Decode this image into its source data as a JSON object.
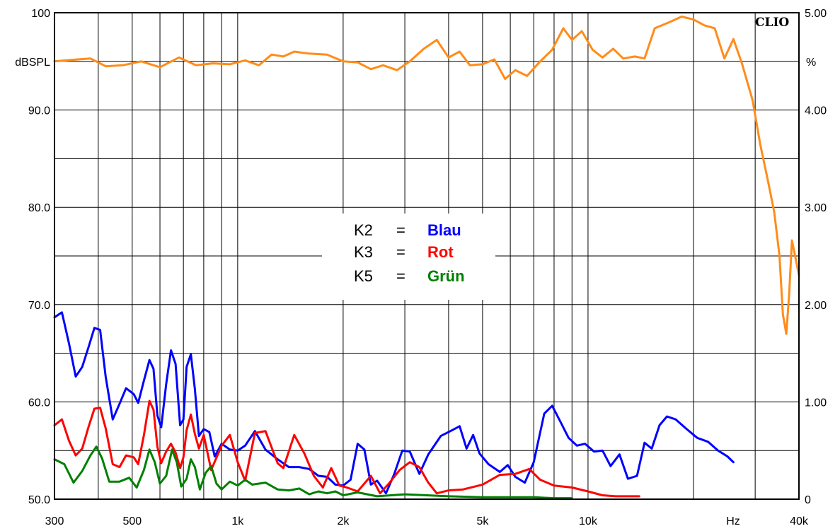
{
  "brand": "CLIO",
  "chart_data": {
    "type": "line",
    "x_scale": "log",
    "xlim": [
      300,
      40000
    ],
    "ylim_left": [
      50,
      100
    ],
    "ylim_right": [
      0,
      5
    ],
    "grid": true,
    "left_unit": "dBSPL",
    "right_unit": "%",
    "x_unit": "Hz",
    "x_ticks": [
      {
        "value": 300,
        "label": "300"
      },
      {
        "value": 500,
        "label": "500"
      },
      {
        "value": 1000,
        "label": "1k"
      },
      {
        "value": 2000,
        "label": "2k"
      },
      {
        "value": 5000,
        "label": "5k"
      },
      {
        "value": 10000,
        "label": "10k"
      },
      {
        "value": 40000,
        "label": "40k"
      }
    ],
    "y_ticks_left": [
      {
        "value": 100,
        "label": "100"
      },
      {
        "value": 90,
        "label": "90.0"
      },
      {
        "value": 80,
        "label": "80.0"
      },
      {
        "value": 70,
        "label": "70.0"
      },
      {
        "value": 60,
        "label": "60.0"
      },
      {
        "value": 50,
        "label": "50.0"
      }
    ],
    "y_ticks_right": [
      {
        "value": 5,
        "label": "5.00"
      },
      {
        "value": 4,
        "label": "4.00"
      },
      {
        "value": 3,
        "label": "3.00"
      },
      {
        "value": 2,
        "label": "2.00"
      },
      {
        "value": 1,
        "label": "1.00"
      },
      {
        "value": 0,
        "label": "0"
      }
    ],
    "legend": [
      {
        "key": "K2",
        "eq": "=",
        "name": "Blau",
        "color": "#0000ff"
      },
      {
        "key": "K3",
        "eq": "=",
        "name": "Rot",
        "color": "#ff0000"
      },
      {
        "key": "K5",
        "eq": "=",
        "name": "Grün",
        "color": "#008000"
      }
    ],
    "series": [
      {
        "color": "#ff8c1a",
        "axis": "left",
        "points": [
          [
            300,
            95.0
          ],
          [
            350,
            95.2
          ],
          [
            380,
            95.3
          ],
          [
            420,
            94.5
          ],
          [
            470,
            94.6
          ],
          [
            530,
            95.0
          ],
          [
            600,
            94.4
          ],
          [
            680,
            95.4
          ],
          [
            760,
            94.6
          ],
          [
            850,
            94.8
          ],
          [
            950,
            94.7
          ],
          [
            1050,
            95.1
          ],
          [
            1150,
            94.6
          ],
          [
            1250,
            95.7
          ],
          [
            1350,
            95.5
          ],
          [
            1450,
            96.0
          ],
          [
            1600,
            95.8
          ],
          [
            1800,
            95.7
          ],
          [
            2000,
            95.0
          ],
          [
            2200,
            94.9
          ],
          [
            2400,
            94.2
          ],
          [
            2600,
            94.6
          ],
          [
            2850,
            94.1
          ],
          [
            3100,
            95.0
          ],
          [
            3400,
            96.3
          ],
          [
            3700,
            97.2
          ],
          [
            4000,
            95.4
          ],
          [
            4300,
            96.0
          ],
          [
            4600,
            94.6
          ],
          [
            5000,
            94.7
          ],
          [
            5400,
            95.2
          ],
          [
            5800,
            93.2
          ],
          [
            6200,
            94.1
          ],
          [
            6700,
            93.5
          ],
          [
            7300,
            95.0
          ],
          [
            7900,
            96.2
          ],
          [
            8500,
            98.4
          ],
          [
            9000,
            97.2
          ],
          [
            9600,
            98.1
          ],
          [
            10300,
            96.2
          ],
          [
            11000,
            95.4
          ],
          [
            11800,
            96.3
          ],
          [
            12600,
            95.3
          ],
          [
            13600,
            95.5
          ],
          [
            14500,
            95.3
          ],
          [
            15500,
            98.4
          ],
          [
            17000,
            99.0
          ],
          [
            18500,
            99.6
          ],
          [
            20000,
            99.3
          ],
          [
            21500,
            98.7
          ],
          [
            23000,
            98.4
          ],
          [
            24500,
            95.3
          ],
          [
            26000,
            97.3
          ],
          [
            27500,
            94.8
          ],
          [
            29500,
            91.0
          ],
          [
            31000,
            86.5
          ],
          [
            32500,
            83.0
          ],
          [
            34000,
            79.5
          ],
          [
            35200,
            75.0
          ],
          [
            36000,
            69.0
          ],
          [
            36800,
            67.0
          ],
          [
            37500,
            71.0
          ],
          [
            38200,
            76.6
          ],
          [
            39000,
            75.0
          ],
          [
            40000,
            73.0
          ]
        ]
      },
      {
        "color": "#0000ff",
        "axis": "left",
        "points": [
          [
            300,
            68.7
          ],
          [
            315,
            69.2
          ],
          [
            330,
            66.0
          ],
          [
            345,
            62.6
          ],
          [
            360,
            63.6
          ],
          [
            375,
            65.6
          ],
          [
            390,
            67.6
          ],
          [
            405,
            67.4
          ],
          [
            420,
            62.6
          ],
          [
            440,
            58.2
          ],
          [
            460,
            59.8
          ],
          [
            480,
            61.4
          ],
          [
            505,
            60.8
          ],
          [
            520,
            59.9
          ],
          [
            540,
            62.2
          ],
          [
            560,
            64.3
          ],
          [
            575,
            63.4
          ],
          [
            590,
            58.6
          ],
          [
            605,
            57.4
          ],
          [
            625,
            61.8
          ],
          [
            645,
            65.3
          ],
          [
            665,
            63.9
          ],
          [
            685,
            57.6
          ],
          [
            700,
            58.2
          ],
          [
            715,
            63.6
          ],
          [
            735,
            64.9
          ],
          [
            755,
            61.3
          ],
          [
            775,
            56.5
          ],
          [
            800,
            57.2
          ],
          [
            830,
            56.9
          ],
          [
            860,
            54.4
          ],
          [
            900,
            55.7
          ],
          [
            950,
            55.1
          ],
          [
            1000,
            55.0
          ],
          [
            1050,
            55.5
          ],
          [
            1120,
            57.0
          ],
          [
            1200,
            55.1
          ],
          [
            1300,
            54.1
          ],
          [
            1400,
            53.3
          ],
          [
            1500,
            53.3
          ],
          [
            1600,
            53.1
          ],
          [
            1700,
            52.4
          ],
          [
            1800,
            52.3
          ],
          [
            1900,
            51.5
          ],
          [
            2000,
            51.4
          ],
          [
            2100,
            52.0
          ],
          [
            2200,
            55.7
          ],
          [
            2300,
            55.1
          ],
          [
            2400,
            51.5
          ],
          [
            2500,
            51.9
          ],
          [
            2650,
            50.6
          ],
          [
            2800,
            52.6
          ],
          [
            2950,
            55.0
          ],
          [
            3100,
            54.9
          ],
          [
            3300,
            52.6
          ],
          [
            3500,
            54.6
          ],
          [
            3800,
            56.5
          ],
          [
            4100,
            57.1
          ],
          [
            4300,
            57.5
          ],
          [
            4500,
            55.2
          ],
          [
            4700,
            56.6
          ],
          [
            4900,
            54.7
          ],
          [
            5200,
            53.6
          ],
          [
            5600,
            52.8
          ],
          [
            5900,
            53.5
          ],
          [
            6200,
            52.3
          ],
          [
            6600,
            51.7
          ],
          [
            7000,
            53.8
          ],
          [
            7500,
            58.8
          ],
          [
            7900,
            59.6
          ],
          [
            8300,
            58.1
          ],
          [
            8800,
            56.3
          ],
          [
            9300,
            55.5
          ],
          [
            9800,
            55.7
          ],
          [
            10400,
            54.9
          ],
          [
            11000,
            55.0
          ],
          [
            11600,
            53.4
          ],
          [
            12300,
            54.6
          ],
          [
            13000,
            52.1
          ],
          [
            13800,
            52.4
          ],
          [
            14500,
            55.8
          ],
          [
            15200,
            55.2
          ],
          [
            16000,
            57.6
          ],
          [
            16800,
            58.5
          ],
          [
            17800,
            58.2
          ],
          [
            19000,
            57.3
          ],
          [
            20500,
            56.3
          ],
          [
            22000,
            55.9
          ],
          [
            23500,
            55.0
          ],
          [
            25000,
            54.4
          ],
          [
            26000,
            53.8
          ]
        ]
      },
      {
        "color": "#ff0000",
        "axis": "left",
        "points": [
          [
            300,
            57.6
          ],
          [
            315,
            58.2
          ],
          [
            330,
            56.0
          ],
          [
            345,
            54.5
          ],
          [
            360,
            55.2
          ],
          [
            375,
            57.4
          ],
          [
            390,
            59.3
          ],
          [
            405,
            59.4
          ],
          [
            420,
            57.3
          ],
          [
            440,
            53.6
          ],
          [
            460,
            53.3
          ],
          [
            480,
            54.5
          ],
          [
            505,
            54.3
          ],
          [
            520,
            53.6
          ],
          [
            540,
            56.6
          ],
          [
            560,
            60.1
          ],
          [
            575,
            59.2
          ],
          [
            590,
            55.4
          ],
          [
            605,
            53.7
          ],
          [
            625,
            54.9
          ],
          [
            645,
            55.7
          ],
          [
            665,
            54.8
          ],
          [
            685,
            53.2
          ],
          [
            700,
            54.3
          ],
          [
            715,
            57.1
          ],
          [
            735,
            58.7
          ],
          [
            755,
            56.7
          ],
          [
            775,
            55.2
          ],
          [
            800,
            56.6
          ],
          [
            840,
            53.0
          ],
          [
            900,
            55.5
          ],
          [
            950,
            56.6
          ],
          [
            1000,
            53.8
          ],
          [
            1050,
            51.9
          ],
          [
            1120,
            56.8
          ],
          [
            1200,
            57.0
          ],
          [
            1300,
            53.7
          ],
          [
            1350,
            53.2
          ],
          [
            1450,
            56.6
          ],
          [
            1550,
            54.7
          ],
          [
            1650,
            52.4
          ],
          [
            1750,
            51.2
          ],
          [
            1850,
            53.2
          ],
          [
            1950,
            51.4
          ],
          [
            2050,
            51.2
          ],
          [
            2200,
            50.8
          ],
          [
            2400,
            52.4
          ],
          [
            2550,
            50.6
          ],
          [
            2700,
            51.6
          ],
          [
            2900,
            53.0
          ],
          [
            3100,
            53.8
          ],
          [
            3300,
            53.3
          ],
          [
            3500,
            51.7
          ],
          [
            3700,
            50.6
          ],
          [
            4000,
            50.9
          ],
          [
            4400,
            51.0
          ],
          [
            5000,
            51.5
          ],
          [
            5600,
            52.5
          ],
          [
            6200,
            52.6
          ],
          [
            6800,
            53.1
          ],
          [
            7300,
            52.0
          ],
          [
            8000,
            51.4
          ],
          [
            9000,
            51.2
          ],
          [
            10000,
            50.8
          ],
          [
            11000,
            50.4
          ],
          [
            12000,
            50.3
          ],
          [
            14000,
            50.3
          ]
        ]
      },
      {
        "color": "#008000",
        "axis": "left",
        "points": [
          [
            300,
            54.1
          ],
          [
            320,
            53.6
          ],
          [
            340,
            51.7
          ],
          [
            360,
            52.9
          ],
          [
            380,
            54.5
          ],
          [
            395,
            55.4
          ],
          [
            410,
            54.2
          ],
          [
            430,
            51.8
          ],
          [
            460,
            51.8
          ],
          [
            490,
            52.2
          ],
          [
            515,
            51.2
          ],
          [
            540,
            53.0
          ],
          [
            560,
            55.1
          ],
          [
            580,
            53.8
          ],
          [
            600,
            51.6
          ],
          [
            625,
            52.4
          ],
          [
            650,
            55.1
          ],
          [
            670,
            53.8
          ],
          [
            690,
            51.3
          ],
          [
            715,
            52.1
          ],
          [
            735,
            54.1
          ],
          [
            755,
            53.3
          ],
          [
            780,
            51.0
          ],
          [
            810,
            52.7
          ],
          [
            840,
            53.4
          ],
          [
            870,
            51.6
          ],
          [
            900,
            51.0
          ],
          [
            950,
            51.8
          ],
          [
            1000,
            51.4
          ],
          [
            1050,
            52.0
          ],
          [
            1100,
            51.5
          ],
          [
            1200,
            51.7
          ],
          [
            1300,
            51.0
          ],
          [
            1400,
            50.9
          ],
          [
            1500,
            51.1
          ],
          [
            1600,
            50.5
          ],
          [
            1700,
            50.8
          ],
          [
            1800,
            50.6
          ],
          [
            1900,
            50.8
          ],
          [
            2000,
            50.4
          ],
          [
            2200,
            50.7
          ],
          [
            2500,
            50.3
          ],
          [
            3000,
            50.5
          ],
          [
            4000,
            50.3
          ],
          [
            5000,
            50.2
          ],
          [
            6000,
            50.2
          ],
          [
            7000,
            50.2
          ],
          [
            8000,
            50.1
          ],
          [
            9000,
            50.1
          ]
        ]
      }
    ]
  }
}
